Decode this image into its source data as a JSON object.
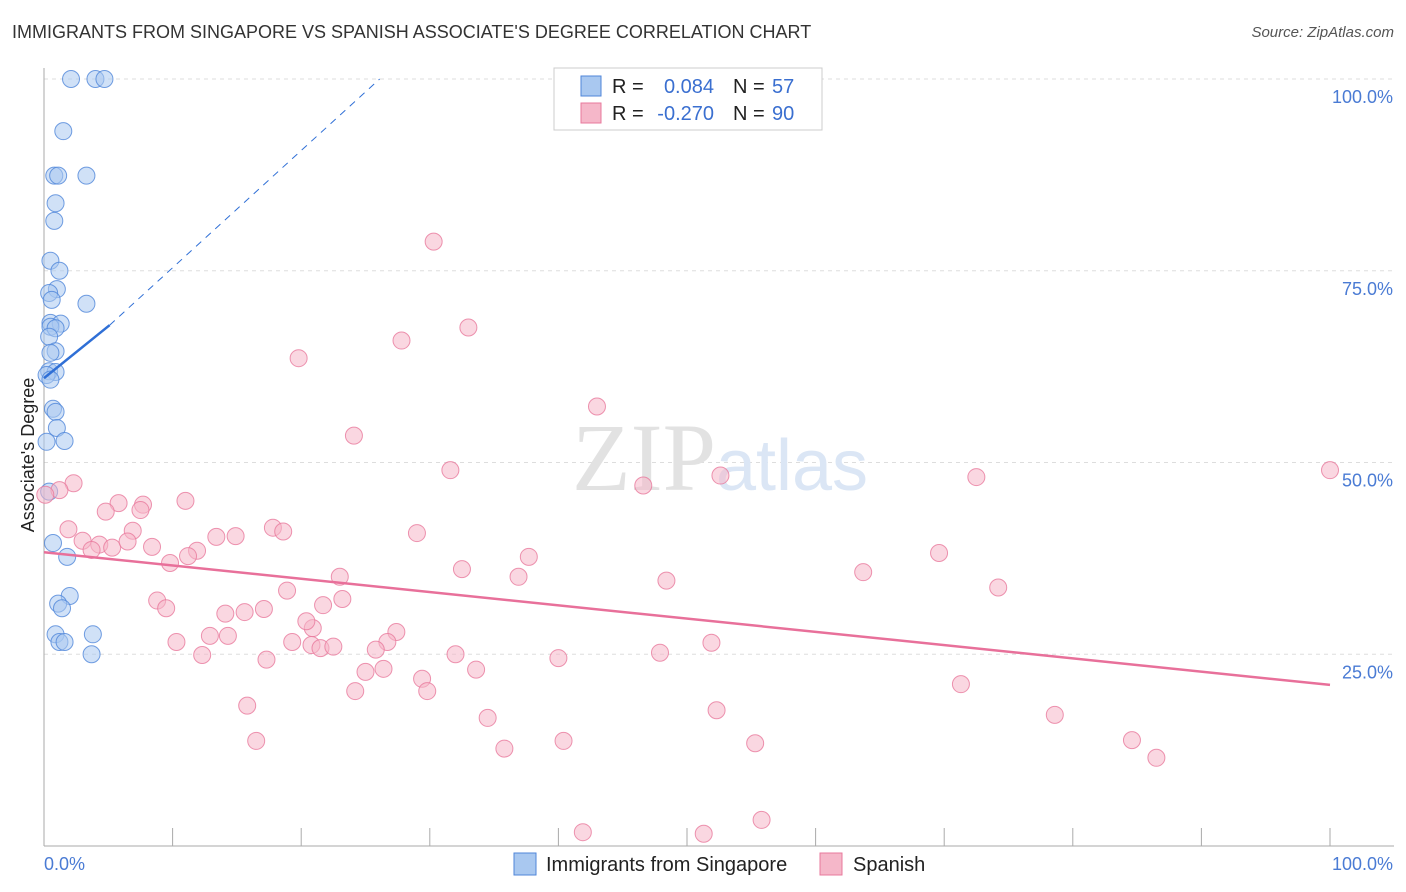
{
  "chart_data": {
    "type": "scatter",
    "title": "IMMIGRANTS FROM SINGAPORE VS SPANISH ASSOCIATE'S DEGREE CORRELATION CHART",
    "source": "Source: ZipAtlas.com",
    "xlabel": "",
    "ylabel": "Associate's Degree",
    "xlim": [
      0,
      100
    ],
    "ylim": [
      0,
      100
    ],
    "x_tick_labels": [
      "0.0%",
      "100.0%"
    ],
    "y_tick_labels": [
      {
        "v": 100,
        "label": "100.0%"
      },
      {
        "v": 75,
        "label": "75.0%"
      },
      {
        "v": 50,
        "label": "50.0%"
      },
      {
        "v": 25,
        "label": "25.0%"
      }
    ],
    "watermark": "ZIPatlas",
    "legend_position": "top-center",
    "series": [
      {
        "name": "Immigrants from Singapore",
        "color": "#4f86d9",
        "fill": "#a9c8f0",
        "R": "0.084",
        "N": "57",
        "trend": {
          "x": [
            0,
            5.1
          ],
          "y": [
            61.0,
            67.9
          ],
          "dash_to": [
            26.1,
            100
          ]
        },
        "points": [
          [
            2.1,
            100
          ],
          [
            4.0,
            100
          ],
          [
            4.7,
            100
          ],
          [
            1.5,
            93.2
          ],
          [
            0.8,
            87.4
          ],
          [
            1.1,
            87.4
          ],
          [
            3.3,
            87.4
          ],
          [
            0.9,
            83.8
          ],
          [
            0.8,
            81.5
          ],
          [
            0.5,
            76.3
          ],
          [
            1.2,
            75.0
          ],
          [
            1.0,
            72.6
          ],
          [
            0.4,
            72.1
          ],
          [
            0.6,
            71.2
          ],
          [
            3.3,
            70.7
          ],
          [
            0.5,
            68.2
          ],
          [
            1.3,
            68.1
          ],
          [
            0.5,
            67.7
          ],
          [
            0.9,
            67.5
          ],
          [
            0.4,
            66.4
          ],
          [
            0.9,
            64.5
          ],
          [
            0.5,
            64.3
          ],
          [
            0.4,
            61.9
          ],
          [
            0.9,
            61.8
          ],
          [
            0.2,
            61.4
          ],
          [
            0.5,
            60.8
          ],
          [
            0.7,
            57.0
          ],
          [
            0.9,
            56.6
          ],
          [
            1.0,
            54.5
          ],
          [
            1.6,
            52.8
          ],
          [
            0.2,
            52.7
          ],
          [
            0.7,
            39.5
          ],
          [
            1.8,
            37.7
          ],
          [
            2.0,
            32.6
          ],
          [
            1.1,
            31.6
          ],
          [
            1.4,
            31.0
          ],
          [
            0.9,
            27.6
          ],
          [
            3.8,
            27.6
          ],
          [
            1.2,
            26.6
          ],
          [
            1.6,
            26.6
          ],
          [
            3.7,
            25.0
          ],
          [
            0.4,
            46.2
          ]
        ]
      },
      {
        "name": "Spanish",
        "color": "#e8799c",
        "fill": "#f5b7c9",
        "R": "-0.270",
        "N": "90",
        "trend": {
          "x": [
            0,
            100
          ],
          "y": [
            38.3,
            21.0
          ]
        },
        "points": [
          [
            30.3,
            78.8
          ],
          [
            33.0,
            67.6
          ],
          [
            27.8,
            65.9
          ],
          [
            19.8,
            63.6
          ],
          [
            43.0,
            57.3
          ],
          [
            24.1,
            53.5
          ],
          [
            31.6,
            49.0
          ],
          [
            46.6,
            47.0
          ],
          [
            52.6,
            48.3
          ],
          [
            72.5,
            48.1
          ],
          [
            100,
            49.0
          ],
          [
            2.3,
            47.3
          ],
          [
            1.2,
            46.4
          ],
          [
            11.0,
            45.0
          ],
          [
            5.8,
            44.7
          ],
          [
            7.7,
            44.5
          ],
          [
            4.8,
            43.6
          ],
          [
            7.5,
            43.8
          ],
          [
            1.9,
            41.3
          ],
          [
            6.9,
            41.1
          ],
          [
            29.0,
            40.8
          ],
          [
            13.4,
            40.3
          ],
          [
            14.9,
            40.4
          ],
          [
            17.8,
            41.5
          ],
          [
            18.6,
            41.0
          ],
          [
            3.0,
            39.8
          ],
          [
            4.3,
            39.3
          ],
          [
            3.7,
            38.6
          ],
          [
            5.3,
            38.9
          ],
          [
            6.5,
            39.7
          ],
          [
            8.4,
            39.0
          ],
          [
            11.9,
            38.5
          ],
          [
            11.2,
            37.8
          ],
          [
            9.8,
            36.9
          ],
          [
            37.7,
            37.7
          ],
          [
            69.6,
            38.2
          ],
          [
            32.5,
            36.1
          ],
          [
            36.9,
            35.1
          ],
          [
            23.0,
            35.1
          ],
          [
            48.4,
            34.6
          ],
          [
            63.7,
            35.7
          ],
          [
            74.2,
            33.7
          ],
          [
            18.9,
            33.3
          ],
          [
            23.2,
            32.2
          ],
          [
            8.8,
            32.0
          ],
          [
            9.5,
            31.0
          ],
          [
            14.1,
            30.3
          ],
          [
            15.6,
            30.5
          ],
          [
            17.1,
            30.9
          ],
          [
            21.7,
            31.4
          ],
          [
            20.9,
            28.4
          ],
          [
            27.4,
            27.9
          ],
          [
            12.9,
            27.4
          ],
          [
            14.3,
            27.4
          ],
          [
            10.3,
            26.6
          ],
          [
            19.3,
            26.6
          ],
          [
            20.8,
            26.2
          ],
          [
            21.5,
            25.8
          ],
          [
            22.5,
            26.0
          ],
          [
            26.7,
            26.6
          ],
          [
            25.8,
            25.6
          ],
          [
            51.9,
            26.5
          ],
          [
            32.0,
            25.0
          ],
          [
            47.9,
            25.2
          ],
          [
            12.3,
            24.9
          ],
          [
            40.0,
            24.5
          ],
          [
            17.3,
            24.3
          ],
          [
            25.0,
            22.7
          ],
          [
            26.4,
            23.1
          ],
          [
            33.6,
            23.0
          ],
          [
            29.4,
            21.8
          ],
          [
            29.8,
            20.2
          ],
          [
            24.2,
            20.2
          ],
          [
            71.3,
            21.1
          ],
          [
            15.8,
            18.3
          ],
          [
            34.5,
            16.7
          ],
          [
            52.3,
            17.7
          ],
          [
            78.6,
            17.1
          ],
          [
            16.5,
            13.7
          ],
          [
            35.8,
            12.7
          ],
          [
            40.4,
            13.7
          ],
          [
            55.3,
            13.4
          ],
          [
            84.6,
            13.8
          ],
          [
            86.5,
            11.5
          ],
          [
            41.9,
            1.8
          ],
          [
            51.3,
            1.6
          ],
          [
            55.8,
            3.4
          ],
          [
            0.1,
            45.8
          ],
          [
            20.4,
            29.3
          ]
        ]
      }
    ]
  }
}
